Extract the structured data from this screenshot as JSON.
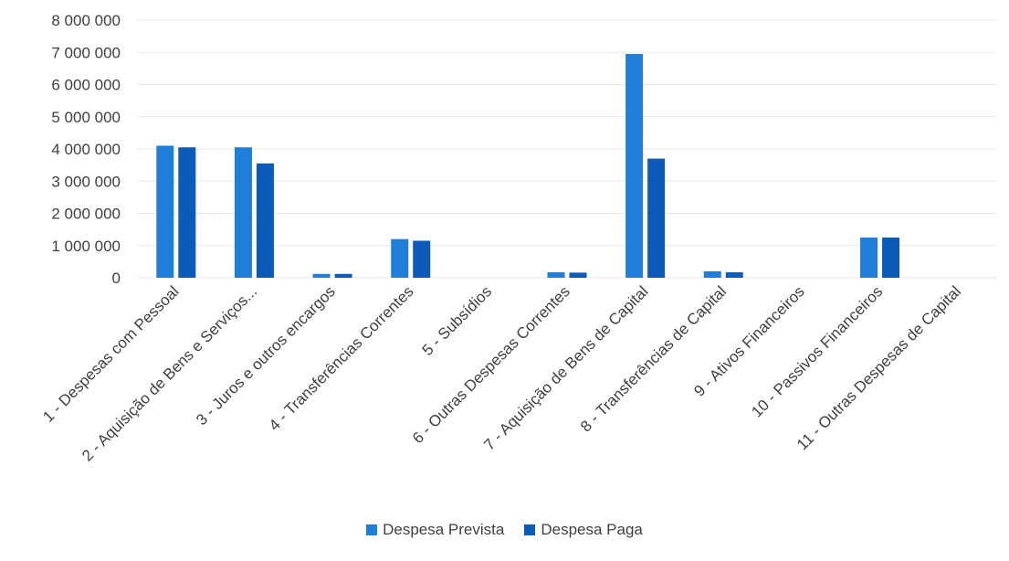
{
  "chart_data": {
    "type": "bar",
    "categories": [
      "1 - Despesas com Pessoal",
      "2 - Aquisição de Bens e Serviços...",
      "3 - Juros e outros encargos",
      "4 - Transferências Correntes",
      "5 - Subsídios",
      "6 - Outras Despesas Correntes",
      "7 - Aquisição de Bens de Capital",
      "8 - Transferências de Capital",
      "9 - Ativos Financeiros",
      "10 - Passivos Financeiros",
      "11 - Outras Despesas de Capital"
    ],
    "series": [
      {
        "name": "Despesa Prevista",
        "color": "#1f7fd8",
        "values": [
          4100000,
          4050000,
          120000,
          1200000,
          0,
          170000,
          6950000,
          200000,
          0,
          1250000,
          0
        ]
      },
      {
        "name": "Despesa Paga",
        "color": "#0d5bb8",
        "values": [
          4050000,
          3550000,
          120000,
          1150000,
          0,
          160000,
          3700000,
          170000,
          0,
          1250000,
          0
        ]
      }
    ],
    "ylim": [
      0,
      8000000
    ],
    "yticks": [
      "0",
      "1 000 000",
      "2 000 000",
      "3 000 000",
      "4 000 000",
      "5 000 000",
      "6 000 000",
      "7 000 000",
      "8 000 000"
    ],
    "title": "",
    "xlabel": "",
    "ylabel": "",
    "grid": true,
    "legend_position": "bottom"
  }
}
